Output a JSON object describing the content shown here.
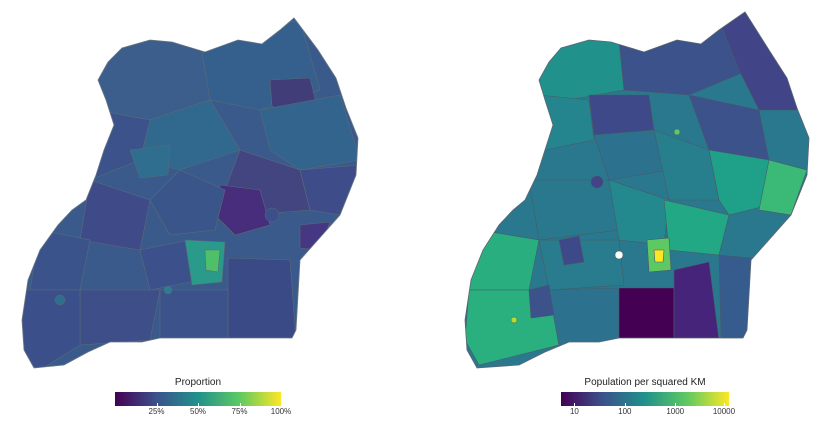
{
  "left_map": {
    "legend": {
      "title": "Proportion",
      "ticks": [
        "25%",
        "50%",
        "75%",
        "100%"
      ],
      "tick_positions": [
        0.25,
        0.5,
        0.75,
        1.0
      ]
    },
    "palette": [
      "#440154",
      "#3b528b",
      "#21918c",
      "#5ec962",
      "#fde725"
    ],
    "base_color": "#3b5a8c",
    "border_color": "#5a6a7a"
  },
  "right_map": {
    "legend": {
      "title": "Population per squared KM",
      "ticks": [
        "10",
        "100",
        "1000",
        "10000"
      ],
      "tick_positions": [
        0.08,
        0.38,
        0.68,
        0.97
      ]
    },
    "palette": [
      "#440154",
      "#3b528b",
      "#21918c",
      "#5ec962",
      "#fde725"
    ],
    "base_color": "#2a788e",
    "border_color": "#4a5a6a"
  }
}
